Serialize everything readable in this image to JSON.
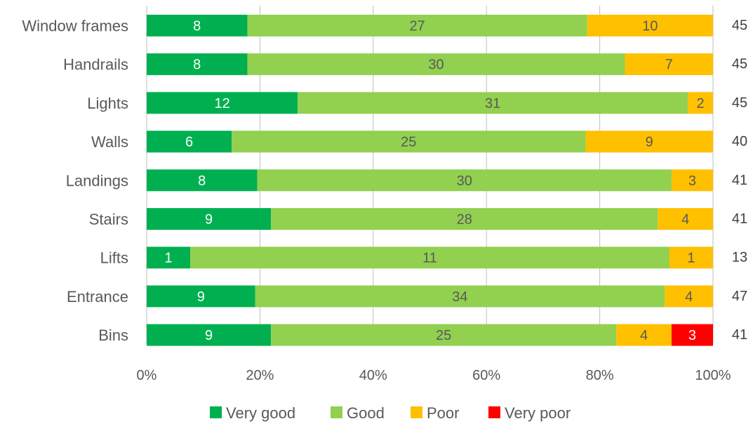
{
  "chart_data": {
    "type": "bar",
    "orientation": "horizontal",
    "stacked": "percent",
    "categories": [
      "Window frames",
      "Handrails",
      "Lights",
      "Walls",
      "Landings",
      "Stairs",
      "Lifts",
      "Entrance",
      "Bins"
    ],
    "series": [
      {
        "name": "Very good",
        "color": "#00b050",
        "label_color": "#ffffff",
        "values": [
          8,
          8,
          12,
          6,
          8,
          9,
          1,
          9,
          9
        ]
      },
      {
        "name": "Good",
        "color": "#92d050",
        "label_color": "#595959",
        "values": [
          27,
          30,
          31,
          25,
          30,
          28,
          11,
          34,
          25
        ]
      },
      {
        "name": "Poor",
        "color": "#ffc000",
        "label_color": "#595959",
        "values": [
          10,
          7,
          2,
          9,
          3,
          4,
          1,
          4,
          4
        ]
      },
      {
        "name": "Very poor",
        "color": "#ff0000",
        "label_color": "#ffffff",
        "values": [
          0,
          0,
          0,
          0,
          0,
          0,
          0,
          0,
          3
        ]
      }
    ],
    "totals": [
      "45",
      "45",
      "45",
      "40",
      "41",
      "41",
      "13",
      "47",
      "41"
    ],
    "x_ticks": [
      "0%",
      "20%",
      "40%",
      "60%",
      "80%",
      "100%"
    ],
    "xlim": [
      0,
      100
    ],
    "grid": "vertical",
    "legend": "bottom",
    "title": "",
    "xlabel": "",
    "ylabel": ""
  }
}
